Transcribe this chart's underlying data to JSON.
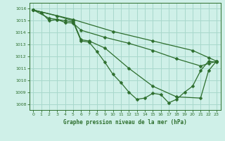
{
  "title": "Graphe pression niveau de la mer (hPa)",
  "background_color": "#cff0e8",
  "grid_color": "#a8d8cc",
  "line_color": "#2d6e2d",
  "xlim": [
    -0.5,
    23.5
  ],
  "ylim": [
    1007.5,
    1016.5
  ],
  "yticks": [
    1008,
    1009,
    1010,
    1011,
    1012,
    1013,
    1014,
    1015,
    1016
  ],
  "xticks": [
    0,
    1,
    2,
    3,
    4,
    5,
    6,
    7,
    8,
    9,
    10,
    11,
    12,
    13,
    14,
    15,
    16,
    17,
    18,
    19,
    20,
    21,
    22,
    23
  ],
  "line1": [
    [
      0,
      1015.9
    ],
    [
      1,
      1015.7
    ],
    [
      2,
      1015.0
    ],
    [
      3,
      1015.1
    ],
    [
      4,
      1015.0
    ],
    [
      5,
      1014.9
    ],
    [
      6,
      1013.3
    ],
    [
      7,
      1013.2
    ],
    [
      8,
      1012.4
    ],
    [
      9,
      1011.5
    ],
    [
      10,
      1010.5
    ],
    [
      11,
      1009.8
    ],
    [
      12,
      1009.0
    ],
    [
      13,
      1008.4
    ],
    [
      14,
      1008.5
    ],
    [
      15,
      1008.9
    ],
    [
      16,
      1008.8
    ],
    [
      17,
      1008.1
    ],
    [
      18,
      1008.4
    ],
    [
      19,
      1009.0
    ],
    [
      20,
      1009.5
    ],
    [
      21,
      1010.8
    ],
    [
      22,
      1011.6
    ],
    [
      23,
      1011.5
    ]
  ],
  "line2": [
    [
      0,
      1015.9
    ],
    [
      3,
      1015.4
    ],
    [
      5,
      1015.0
    ],
    [
      6,
      1013.4
    ],
    [
      7,
      1013.3
    ],
    [
      9,
      1012.7
    ],
    [
      12,
      1011.0
    ],
    [
      15,
      1009.5
    ],
    [
      18,
      1008.6
    ],
    [
      21,
      1008.5
    ],
    [
      22,
      1010.8
    ],
    [
      23,
      1011.6
    ]
  ],
  "line3": [
    [
      0,
      1015.9
    ],
    [
      2,
      1015.2
    ],
    [
      3,
      1015.1
    ],
    [
      4,
      1014.85
    ],
    [
      5,
      1014.8
    ],
    [
      6,
      1014.2
    ],
    [
      9,
      1013.6
    ],
    [
      12,
      1013.1
    ],
    [
      15,
      1012.5
    ],
    [
      18,
      1011.8
    ],
    [
      21,
      1011.2
    ],
    [
      22,
      1011.4
    ],
    [
      23,
      1011.6
    ]
  ],
  "line4": [
    [
      0,
      1015.9
    ],
    [
      5,
      1015.1
    ],
    [
      10,
      1014.1
    ],
    [
      15,
      1013.3
    ],
    [
      20,
      1012.5
    ],
    [
      22,
      1011.9
    ],
    [
      23,
      1011.6
    ]
  ]
}
